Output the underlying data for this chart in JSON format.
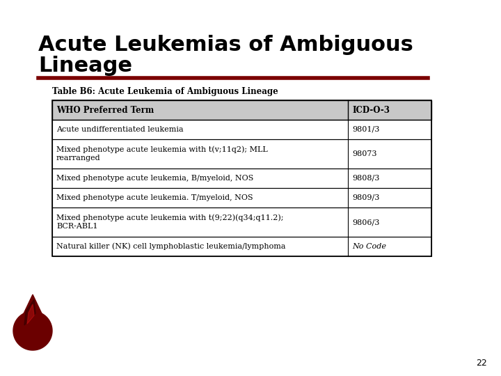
{
  "title_line1": "Acute Leukemias of Ambiguous",
  "title_line2": "Lineage",
  "title_fontsize": 22,
  "title_color": "#000000",
  "underline_color": "#7B0000",
  "table_title": "Table B6: Acute Leukemia of Ambiguous Lineage",
  "table_title_fontsize": 8.5,
  "header": [
    "WHO Preferred Term",
    "ICD-O-3"
  ],
  "header_bg": "#C8C8C8",
  "header_fontsize": 8.5,
  "rows": [
    [
      "Acute undifferentiated leukemia",
      "9801/3",
      false
    ],
    [
      "Mixed phenotype acute leukemia with t(v;11q2); MLL\nrearranged",
      "98073",
      false
    ],
    [
      "Mixed phenotype acute leukemia, B/myeloid, NOS",
      "9808/3",
      false
    ],
    [
      "Mixed phenotype acute leukemia. T/myeloid, NOS",
      "9809/3",
      false
    ],
    [
      "Mixed phenotype acute leukemia with t(9;22)(q34;q11.2);\nBCR-ABL1",
      "9806/3",
      false
    ],
    [
      "Natural killer (NK) cell lymphoblastic leukemia/lymphoma",
      "No Code",
      true
    ]
  ],
  "row_fontsize": 8,
  "page_number": "22",
  "bg_color": "#FFFFFF",
  "table_border_color": "#000000"
}
